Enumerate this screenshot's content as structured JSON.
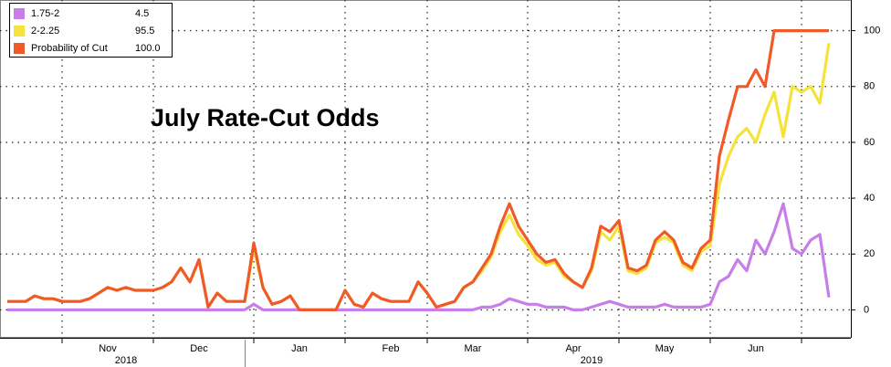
{
  "chart_data": {
    "type": "line",
    "title": "July Rate-Cut Odds",
    "categories": [
      null,
      null,
      null,
      null,
      null,
      null,
      null,
      null,
      null,
      null,
      null,
      "Nov",
      null,
      null,
      null,
      null,
      null,
      null,
      null,
      null,
      null,
      "Dec",
      null,
      null,
      null,
      null,
      null,
      null,
      null,
      null,
      null,
      null,
      "Jan",
      null,
      null,
      null,
      null,
      null,
      null,
      null,
      null,
      null,
      "Feb",
      null,
      null,
      null,
      null,
      null,
      null,
      null,
      null,
      "Mar",
      null,
      null,
      null,
      null,
      null,
      null,
      null,
      null,
      null,
      null,
      "Apr",
      null,
      null,
      null,
      null,
      null,
      null,
      null,
      null,
      null,
      "May",
      null,
      null,
      null,
      null,
      null,
      null,
      null,
      null,
      null,
      "Jun",
      null,
      null,
      null,
      null,
      null,
      null,
      null,
      null
    ],
    "year_labels": [
      {
        "label": "2018",
        "category": 11
      },
      {
        "label": "2019",
        "category": 62
      }
    ],
    "legend_values": [
      "4.5",
      "95.5",
      "100.0"
    ],
    "series": [
      {
        "name": "1.75-2",
        "color": "#c77ee8",
        "values": [
          0,
          0,
          0,
          0,
          0,
          0,
          0,
          0,
          0,
          0,
          0,
          0,
          0,
          0,
          0,
          0,
          0,
          0,
          0,
          0,
          0,
          0,
          0,
          0,
          0,
          0,
          0,
          2,
          0,
          0,
          0,
          0,
          0,
          0,
          0,
          0,
          0,
          0,
          0,
          0,
          0,
          0,
          0,
          0,
          0,
          0,
          0,
          0,
          0,
          0,
          0,
          0,
          1,
          1,
          2,
          4,
          3,
          2,
          2,
          1,
          1,
          1,
          0,
          0,
          1,
          2,
          3,
          2,
          1,
          1,
          1,
          1,
          2,
          1,
          1,
          1,
          1,
          2,
          10,
          12,
          18,
          14,
          25,
          20,
          28,
          38,
          22,
          20,
          25,
          27,
          4.5
        ]
      },
      {
        "name": "2-2.25",
        "color": "#f5e23a",
        "values": [
          3,
          3,
          3,
          5,
          4,
          4,
          3,
          3,
          3,
          4,
          6,
          8,
          7,
          8,
          7,
          7,
          7,
          8,
          10,
          15,
          10,
          18,
          1,
          6,
          3,
          3,
          3,
          22,
          8,
          2,
          3,
          5,
          0,
          0,
          0,
          0,
          0,
          7,
          2,
          1,
          6,
          4,
          3,
          3,
          3,
          10,
          6,
          1,
          2,
          3,
          8,
          10,
          14,
          19,
          28,
          34,
          27,
          23,
          18,
          16,
          17,
          12,
          10,
          8,
          14,
          28,
          25,
          30,
          14,
          13,
          15,
          24,
          26,
          24,
          16,
          14,
          21,
          23,
          45,
          55,
          62,
          65,
          60,
          70,
          78,
          62,
          80,
          78,
          80,
          74,
          95.5
        ]
      },
      {
        "name": "Probability of Cut",
        "color": "#f05a28",
        "values": [
          3,
          3,
          3,
          5,
          4,
          4,
          3,
          3,
          3,
          4,
          6,
          8,
          7,
          8,
          7,
          7,
          7,
          8,
          10,
          15,
          10,
          18,
          1,
          6,
          3,
          3,
          3,
          24,
          8,
          2,
          3,
          5,
          0,
          0,
          0,
          0,
          0,
          7,
          2,
          1,
          6,
          4,
          3,
          3,
          3,
          10,
          6,
          1,
          2,
          3,
          8,
          10,
          15,
          20,
          30,
          38,
          30,
          25,
          20,
          17,
          18,
          13,
          10,
          8,
          15,
          30,
          28,
          32,
          15,
          14,
          16,
          25,
          28,
          25,
          17,
          15,
          22,
          25,
          55,
          68,
          80,
          80,
          86,
          80,
          100,
          100,
          100,
          100,
          100,
          100,
          100
        ]
      }
    ],
    "ylim": [
      -10,
      110
    ],
    "yticks": [
      0,
      20,
      40,
      60,
      80,
      100
    ],
    "grid": true
  }
}
